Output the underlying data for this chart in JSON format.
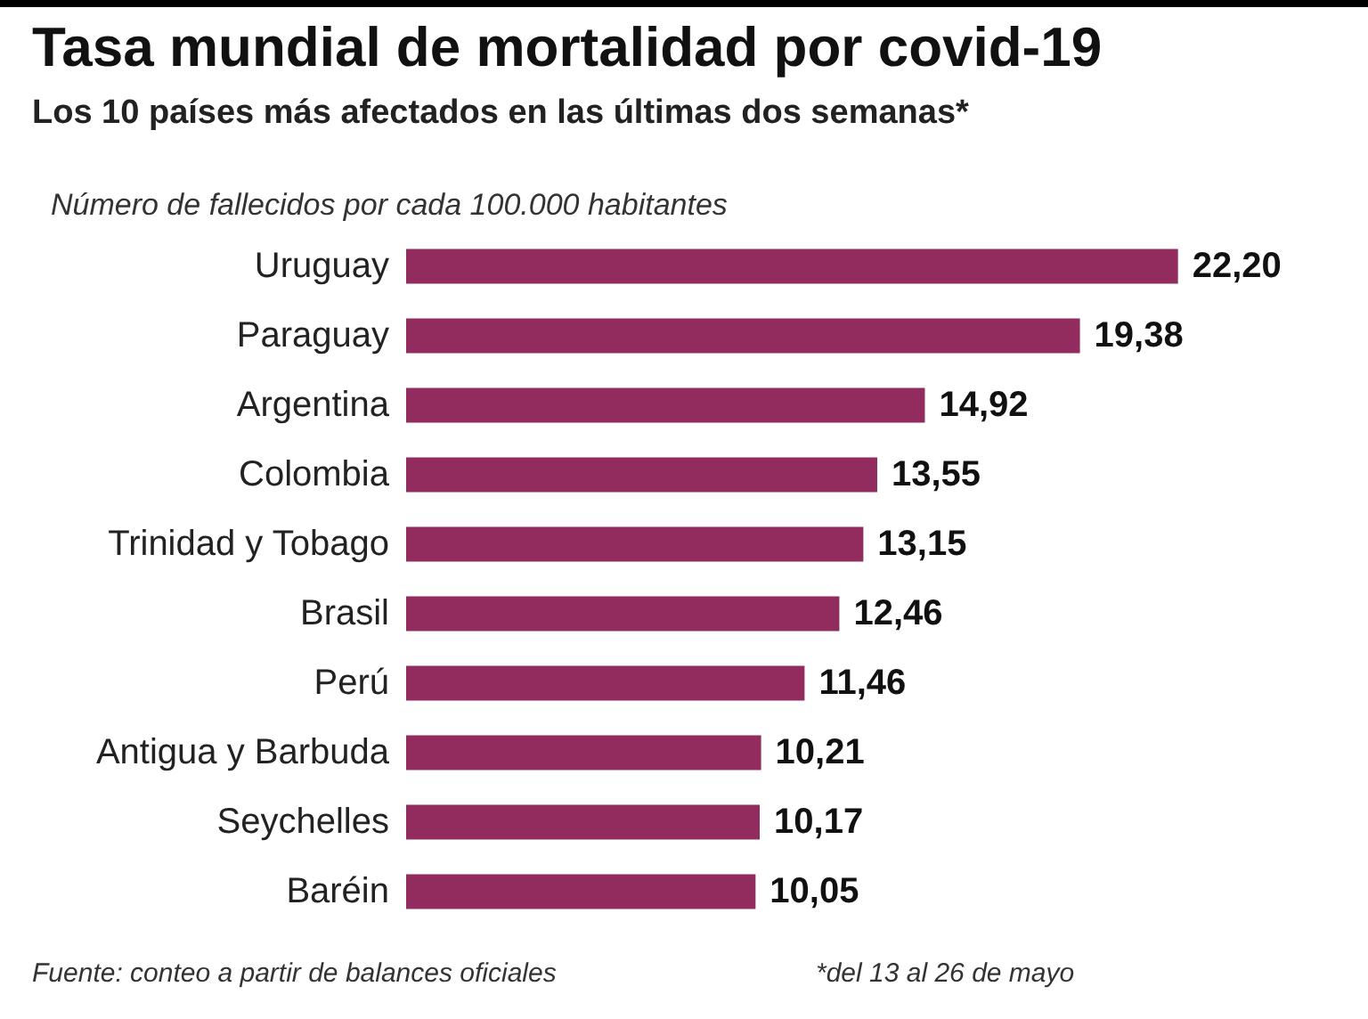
{
  "chart_data": {
    "type": "bar",
    "orientation": "horizontal",
    "title": "Tasa mundial de mortalidad por covid-19",
    "subtitle": "Los 10 países más afectados en las últimas dos semanas*",
    "xlabel": "Número de fallecidos por cada 100.000 habitantes",
    "categories": [
      "Uruguay",
      "Paraguay",
      "Argentina",
      "Colombia",
      "Trinidad y Tobago",
      "Brasil",
      "Perú",
      "Antigua y Barbuda",
      "Seychelles",
      "Baréin"
    ],
    "values": [
      22.2,
      19.38,
      14.92,
      13.55,
      13.15,
      12.46,
      11.46,
      10.21,
      10.17,
      10.05
    ],
    "value_labels": [
      "22,20",
      "19,38",
      "14,92",
      "13,55",
      "13,15",
      "12,46",
      "11,46",
      "10,21",
      "10,17",
      "10,05"
    ],
    "color": "#922c5e",
    "annotations": [
      "Fuente: conteo a partir de balances oficiales",
      "*del 13 al 26 de mayo"
    ]
  }
}
